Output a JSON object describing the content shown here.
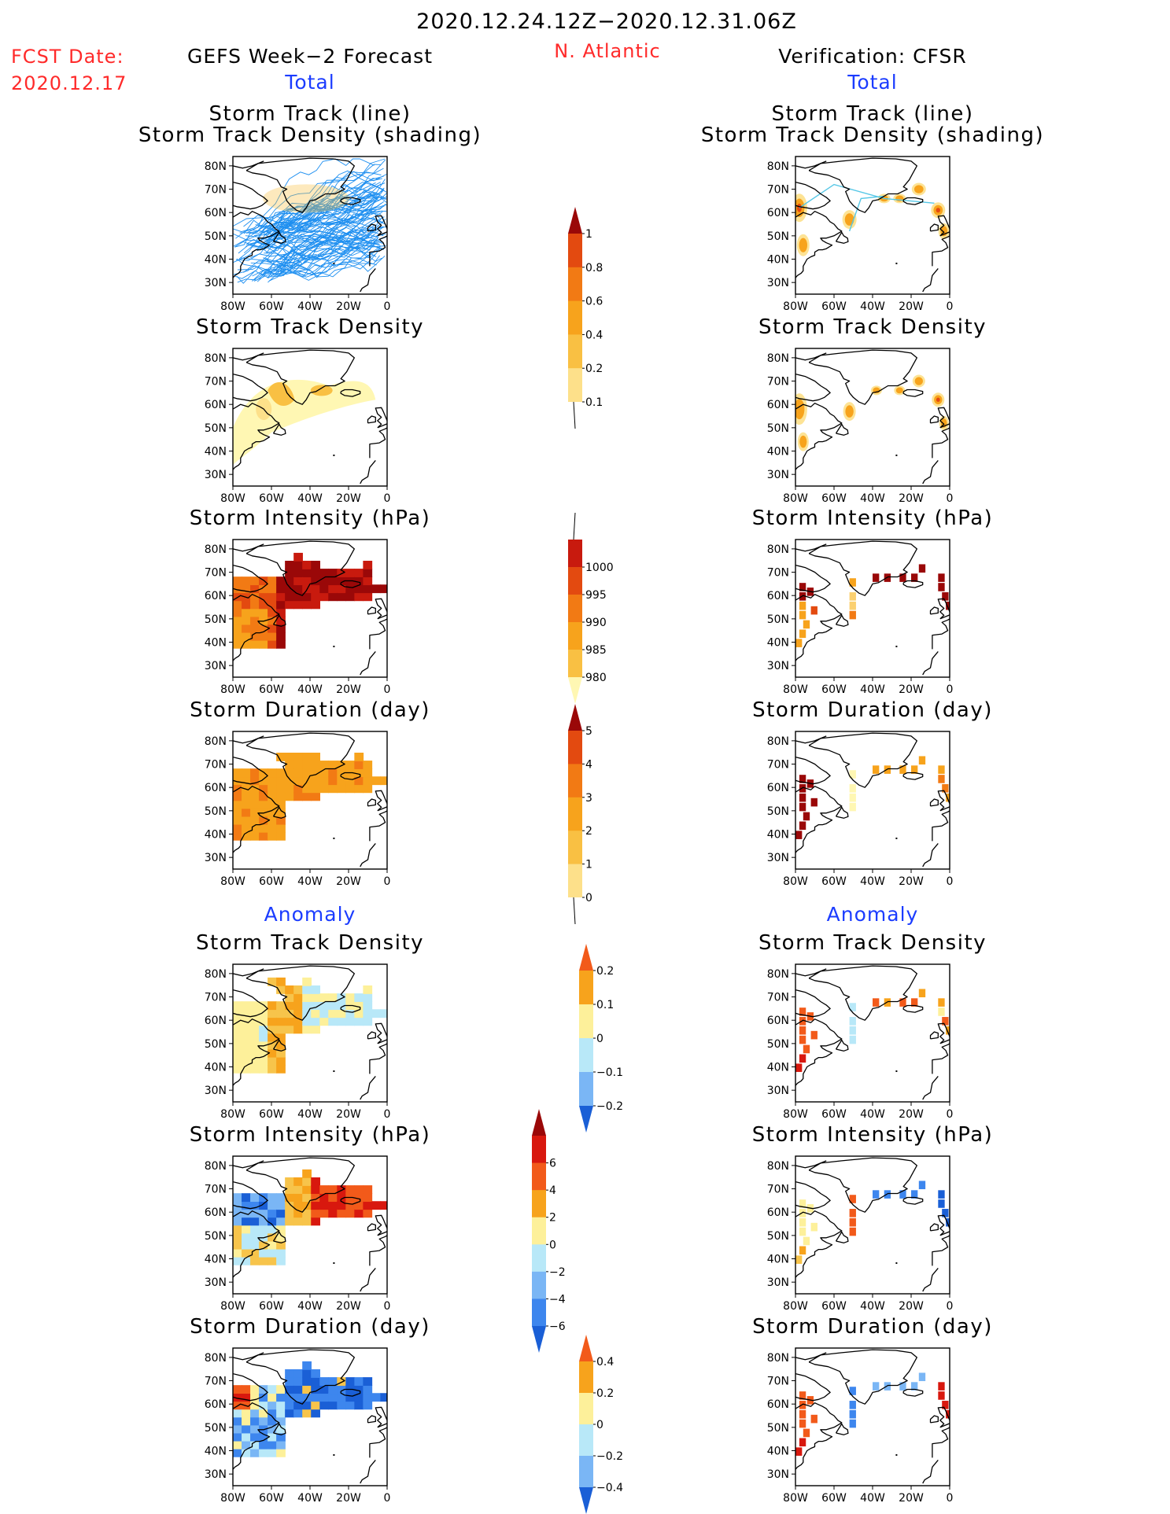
{
  "header": {
    "period": "2020.12.24.12Z−2020.12.31.06Z",
    "fcst_label": "FCST Date:",
    "fcst_date": "2020.12.17",
    "left_title": "GEFS Week−2 Forecast",
    "region": "N. Atlantic",
    "right_title": "Verification: CFSR",
    "total_label": "Total",
    "anomaly_label": "Anomaly"
  },
  "axes": {
    "lat_ticks": [
      "80N",
      "70N",
      "60N",
      "50N",
      "40N",
      "30N"
    ],
    "lon_ticks": [
      "80W",
      "60W",
      "40W",
      "20W",
      "0"
    ]
  },
  "colors": {
    "track_line": "#1e8ff0",
    "track_line_obs": "#55c7e6",
    "density": [
      "#fff7b3",
      "#fde08a",
      "#f9c043",
      "#f7a31c",
      "#f27a14",
      "#e34a10",
      "#c81a0e",
      "#9a0808"
    ],
    "intensity": [
      "#fff7b3",
      "#fbd070",
      "#f7a31c",
      "#f27a14",
      "#e34a10",
      "#c81a0e",
      "#9a0808"
    ],
    "anomaly": [
      "#1a5fd6",
      "#3d86ee",
      "#7ab6f5",
      "#b8e8f8",
      "#fdf09a",
      "#f7c44b",
      "#f7a31c",
      "#f25a1a",
      "#d8180e",
      "#9a0808"
    ]
  },
  "colorbars": [
    {
      "id": "track-density",
      "labels": [
        "1",
        "0.8",
        "0.6",
        "0.4",
        "0.2",
        "0.1"
      ]
    },
    {
      "id": "intensity",
      "labels": [
        "1000",
        "995",
        "990",
        "985",
        "980"
      ]
    },
    {
      "id": "duration",
      "labels": [
        "5",
        "4",
        "3",
        "2",
        "1",
        "0"
      ]
    },
    {
      "id": "density-anomaly",
      "labels": [
        "0.2",
        "0.1",
        "0",
        "−0.1",
        "−0.2"
      ]
    },
    {
      "id": "intensity-anomaly",
      "labels": [
        "6",
        "4",
        "2",
        "0",
        "−2",
        "−4",
        "−6"
      ]
    },
    {
      "id": "duration-anomaly",
      "labels": [
        "0.4",
        "0.2",
        "0",
        "−0.2",
        "−0.4"
      ]
    }
  ],
  "panels": [
    {
      "id": "fc-track",
      "title_lines": [
        "Storm Track (line)",
        "Storm Track Density (shading)"
      ]
    },
    {
      "id": "fc-density",
      "title_lines": [
        "Storm Track Density"
      ]
    },
    {
      "id": "fc-intensity",
      "title_lines": [
        "Storm Intensity (hPa)"
      ]
    },
    {
      "id": "fc-duration",
      "title_lines": [
        "Storm Duration (day)"
      ]
    },
    {
      "id": "fc-density-anom",
      "title_lines": [
        "Storm Track Density"
      ]
    },
    {
      "id": "fc-intensity-anom",
      "title_lines": [
        "Storm Intensity (hPa)"
      ]
    },
    {
      "id": "fc-duration-anom",
      "title_lines": [
        "Storm Duration (day)"
      ]
    },
    {
      "id": "ob-track",
      "title_lines": [
        "Storm Track (line)",
        "Storm Track Density (shading)"
      ]
    },
    {
      "id": "ob-density",
      "title_lines": [
        "Storm Track Density"
      ]
    },
    {
      "id": "ob-intensity",
      "title_lines": [
        "Storm Intensity (hPa)"
      ]
    },
    {
      "id": "ob-duration",
      "title_lines": [
        "Storm Duration (day)"
      ]
    },
    {
      "id": "ob-density-anom",
      "title_lines": [
        "Storm Track Density"
      ]
    },
    {
      "id": "ob-intensity-anom",
      "title_lines": [
        "Storm Intensity (hPa)"
      ]
    },
    {
      "id": "ob-duration-anom",
      "title_lines": [
        "Storm Duration (day)"
      ]
    }
  ],
  "chart_data": {
    "type": "heatmap",
    "region": "N. Atlantic",
    "xlim": [
      -80,
      0
    ],
    "ylim": [
      25,
      84
    ],
    "grid": "off"
  }
}
